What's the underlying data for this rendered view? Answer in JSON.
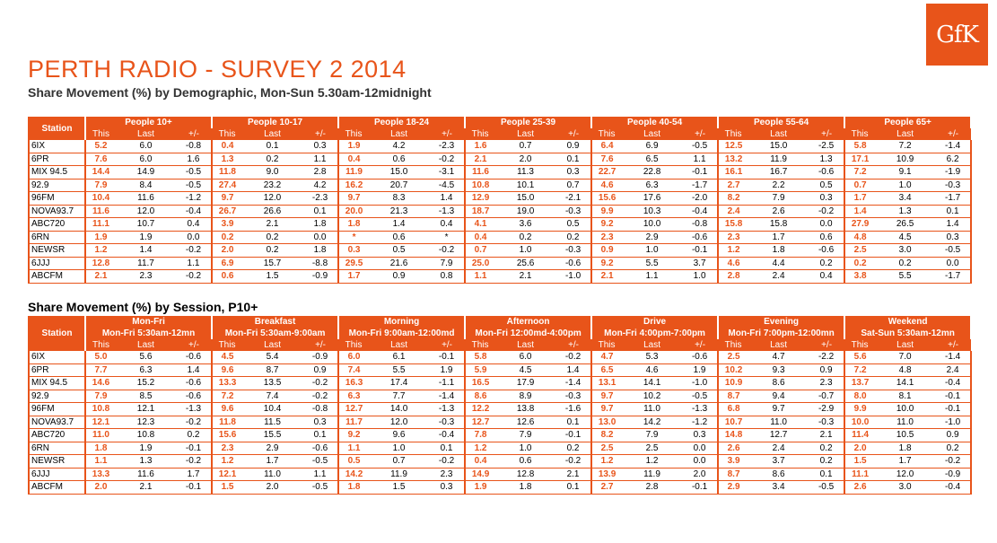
{
  "logo": "GfK",
  "title": "PERTH RADIO - SURVEY 2 2014",
  "subtitle": "Share Movement (%) by Demographic, Mon-Sun 5.30am-12midnight",
  "colors": {
    "accent": "#e8541a"
  },
  "demo": {
    "station_header": "Station",
    "sub_headers": [
      "This",
      "Last",
      "+/-"
    ],
    "groups": [
      {
        "name": "People 10+"
      },
      {
        "name": "People 10-17"
      },
      {
        "name": "People 18-24"
      },
      {
        "name": "People 25-39"
      },
      {
        "name": "People 40-54"
      },
      {
        "name": "People 55-64"
      },
      {
        "name": "People 65+"
      }
    ],
    "rows": [
      {
        "station": "6IX",
        "vals": [
          "5.2",
          "6.0",
          "-0.8",
          "0.4",
          "0.1",
          "0.3",
          "1.9",
          "4.2",
          "-2.3",
          "1.6",
          "0.7",
          "0.9",
          "6.4",
          "6.9",
          "-0.5",
          "12.5",
          "15.0",
          "-2.5",
          "5.8",
          "7.2",
          "-1.4"
        ]
      },
      {
        "station": "6PR",
        "vals": [
          "7.6",
          "6.0",
          "1.6",
          "1.3",
          "0.2",
          "1.1",
          "0.4",
          "0.6",
          "-0.2",
          "2.1",
          "2.0",
          "0.1",
          "7.6",
          "6.5",
          "1.1",
          "13.2",
          "11.9",
          "1.3",
          "17.1",
          "10.9",
          "6.2"
        ]
      },
      {
        "station": "MIX 94.5",
        "vals": [
          "14.4",
          "14.9",
          "-0.5",
          "11.8",
          "9.0",
          "2.8",
          "11.9",
          "15.0",
          "-3.1",
          "11.6",
          "11.3",
          "0.3",
          "22.7",
          "22.8",
          "-0.1",
          "16.1",
          "16.7",
          "-0.6",
          "7.2",
          "9.1",
          "-1.9"
        ]
      },
      {
        "station": "92.9",
        "vals": [
          "7.9",
          "8.4",
          "-0.5",
          "27.4",
          "23.2",
          "4.2",
          "16.2",
          "20.7",
          "-4.5",
          "10.8",
          "10.1",
          "0.7",
          "4.6",
          "6.3",
          "-1.7",
          "2.7",
          "2.2",
          "0.5",
          "0.7",
          "1.0",
          "-0.3"
        ]
      },
      {
        "station": "96FM",
        "vals": [
          "10.4",
          "11.6",
          "-1.2",
          "9.7",
          "12.0",
          "-2.3",
          "9.7",
          "8.3",
          "1.4",
          "12.9",
          "15.0",
          "-2.1",
          "15.6",
          "17.6",
          "-2.0",
          "8.2",
          "7.9",
          "0.3",
          "1.7",
          "3.4",
          "-1.7"
        ]
      },
      {
        "station": "NOVA93.7",
        "vals": [
          "11.6",
          "12.0",
          "-0.4",
          "26.7",
          "26.6",
          "0.1",
          "20.0",
          "21.3",
          "-1.3",
          "18.7",
          "19.0",
          "-0.3",
          "9.9",
          "10.3",
          "-0.4",
          "2.4",
          "2.6",
          "-0.2",
          "1.4",
          "1.3",
          "0.1"
        ]
      },
      {
        "station": "ABC720",
        "vals": [
          "11.1",
          "10.7",
          "0.4",
          "3.9",
          "2.1",
          "1.8",
          "1.8",
          "1.4",
          "0.4",
          "4.1",
          "3.6",
          "0.5",
          "9.2",
          "10.0",
          "-0.8",
          "15.8",
          "15.8",
          "0.0",
          "27.9",
          "26.5",
          "1.4"
        ]
      },
      {
        "station": "6RN",
        "vals": [
          "1.9",
          "1.9",
          "0.0",
          "0.2",
          "0.2",
          "0.0",
          "*",
          "0.6",
          "*",
          "0.4",
          "0.2",
          "0.2",
          "2.3",
          "2.9",
          "-0.6",
          "2.3",
          "1.7",
          "0.6",
          "4.8",
          "4.5",
          "0.3"
        ]
      },
      {
        "station": "NEWSR",
        "vals": [
          "1.2",
          "1.4",
          "-0.2",
          "2.0",
          "0.2",
          "1.8",
          "0.3",
          "0.5",
          "-0.2",
          "0.7",
          "1.0",
          "-0.3",
          "0.9",
          "1.0",
          "-0.1",
          "1.2",
          "1.8",
          "-0.6",
          "2.5",
          "3.0",
          "-0.5"
        ]
      },
      {
        "station": "6JJJ",
        "vals": [
          "12.8",
          "11.7",
          "1.1",
          "6.9",
          "15.7",
          "-8.8",
          "29.5",
          "21.6",
          "7.9",
          "25.0",
          "25.6",
          "-0.6",
          "9.2",
          "5.5",
          "3.7",
          "4.6",
          "4.4",
          "0.2",
          "0.2",
          "0.2",
          "0.0"
        ]
      },
      {
        "station": "ABCFM",
        "vals": [
          "2.1",
          "2.3",
          "-0.2",
          "0.6",
          "1.5",
          "-0.9",
          "1.7",
          "0.9",
          "0.8",
          "1.1",
          "2.1",
          "-1.0",
          "2.1",
          "1.1",
          "1.0",
          "2.8",
          "2.4",
          "0.4",
          "3.8",
          "5.5",
          "-1.7"
        ]
      }
    ]
  },
  "session_title": "Share Movement (%) by Session, P10+",
  "session": {
    "station_header": "Station",
    "sub_headers": [
      "This",
      "Last",
      "+/-"
    ],
    "groups": [
      {
        "name": "Mon-Fri",
        "time": "Mon-Fri 5:30am-12mn"
      },
      {
        "name": "Breakfast",
        "time": "Mon-Fri 5:30am-9:00am"
      },
      {
        "name": "Morning",
        "time": "Mon-Fri 9:00am-12:00md"
      },
      {
        "name": "Afternoon",
        "time": "Mon-Fri 12:00md-4:00pm"
      },
      {
        "name": "Drive",
        "time": "Mon-Fri 4:00pm-7:00pm"
      },
      {
        "name": "Evening",
        "time": "Mon-Fri 7:00pm-12:00mn"
      },
      {
        "name": "Weekend",
        "time": "Sat-Sun 5:30am-12mn"
      }
    ],
    "rows": [
      {
        "station": "6IX",
        "vals": [
          "5.0",
          "5.6",
          "-0.6",
          "4.5",
          "5.4",
          "-0.9",
          "6.0",
          "6.1",
          "-0.1",
          "5.8",
          "6.0",
          "-0.2",
          "4.7",
          "5.3",
          "-0.6",
          "2.5",
          "4.7",
          "-2.2",
          "5.6",
          "7.0",
          "-1.4"
        ]
      },
      {
        "station": "6PR",
        "vals": [
          "7.7",
          "6.3",
          "1.4",
          "9.6",
          "8.7",
          "0.9",
          "7.4",
          "5.5",
          "1.9",
          "5.9",
          "4.5",
          "1.4",
          "6.5",
          "4.6",
          "1.9",
          "10.2",
          "9.3",
          "0.9",
          "7.2",
          "4.8",
          "2.4"
        ]
      },
      {
        "station": "MIX 94.5",
        "vals": [
          "14.6",
          "15.2",
          "-0.6",
          "13.3",
          "13.5",
          "-0.2",
          "16.3",
          "17.4",
          "-1.1",
          "16.5",
          "17.9",
          "-1.4",
          "13.1",
          "14.1",
          "-1.0",
          "10.9",
          "8.6",
          "2.3",
          "13.7",
          "14.1",
          "-0.4"
        ]
      },
      {
        "station": "92.9",
        "vals": [
          "7.9",
          "8.5",
          "-0.6",
          "7.2",
          "7.4",
          "-0.2",
          "6.3",
          "7.7",
          "-1.4",
          "8.6",
          "8.9",
          "-0.3",
          "9.7",
          "10.2",
          "-0.5",
          "8.7",
          "9.4",
          "-0.7",
          "8.0",
          "8.1",
          "-0.1"
        ]
      },
      {
        "station": "96FM",
        "vals": [
          "10.8",
          "12.1",
          "-1.3",
          "9.6",
          "10.4",
          "-0.8",
          "12.7",
          "14.0",
          "-1.3",
          "12.2",
          "13.8",
          "-1.6",
          "9.7",
          "11.0",
          "-1.3",
          "6.8",
          "9.7",
          "-2.9",
          "9.9",
          "10.0",
          "-0.1"
        ]
      },
      {
        "station": "NOVA93.7",
        "vals": [
          "12.1",
          "12.3",
          "-0.2",
          "11.8",
          "11.5",
          "0.3",
          "11.7",
          "12.0",
          "-0.3",
          "12.7",
          "12.6",
          "0.1",
          "13.0",
          "14.2",
          "-1.2",
          "10.7",
          "11.0",
          "-0.3",
          "10.0",
          "11.0",
          "-1.0"
        ]
      },
      {
        "station": "ABC720",
        "vals": [
          "11.0",
          "10.8",
          "0.2",
          "15.6",
          "15.5",
          "0.1",
          "9.2",
          "9.6",
          "-0.4",
          "7.8",
          "7.9",
          "-0.1",
          "8.2",
          "7.9",
          "0.3",
          "14.8",
          "12.7",
          "2.1",
          "11.4",
          "10.5",
          "0.9"
        ]
      },
      {
        "station": "6RN",
        "vals": [
          "1.8",
          "1.9",
          "-0.1",
          "2.3",
          "2.9",
          "-0.6",
          "1.1",
          "1.0",
          "0.1",
          "1.2",
          "1.0",
          "0.2",
          "2.5",
          "2.5",
          "0.0",
          "2.6",
          "2.4",
          "0.2",
          "2.0",
          "1.8",
          "0.2"
        ]
      },
      {
        "station": "NEWSR",
        "vals": [
          "1.1",
          "1.3",
          "-0.2",
          "1.2",
          "1.7",
          "-0.5",
          "0.5",
          "0.7",
          "-0.2",
          "0.4",
          "0.6",
          "-0.2",
          "1.2",
          "1.2",
          "0.0",
          "3.9",
          "3.7",
          "0.2",
          "1.5",
          "1.7",
          "-0.2"
        ]
      },
      {
        "station": "6JJJ",
        "vals": [
          "13.3",
          "11.6",
          "1.7",
          "12.1",
          "11.0",
          "1.1",
          "14.2",
          "11.9",
          "2.3",
          "14.9",
          "12.8",
          "2.1",
          "13.9",
          "11.9",
          "2.0",
          "8.7",
          "8.6",
          "0.1",
          "11.1",
          "12.0",
          "-0.9"
        ]
      },
      {
        "station": "ABCFM",
        "vals": [
          "2.0",
          "2.1",
          "-0.1",
          "1.5",
          "2.0",
          "-0.5",
          "1.8",
          "1.5",
          "0.3",
          "1.9",
          "1.8",
          "0.1",
          "2.7",
          "2.8",
          "-0.1",
          "2.9",
          "3.4",
          "-0.5",
          "2.6",
          "3.0",
          "-0.4"
        ]
      }
    ]
  }
}
